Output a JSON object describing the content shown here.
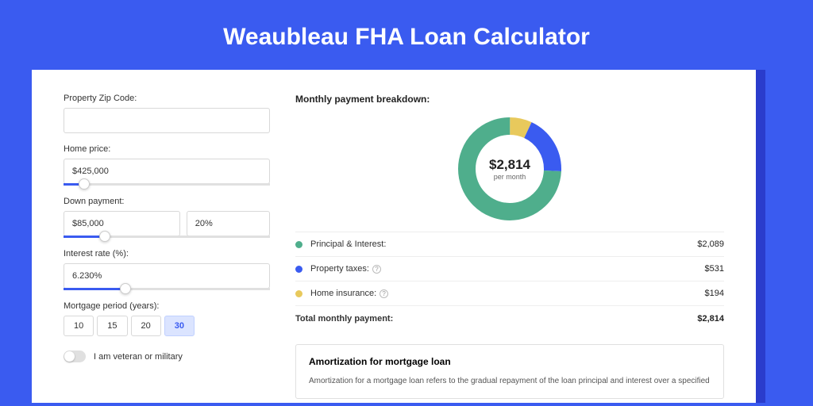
{
  "title": "Weaubleau FHA Loan Calculator",
  "colors": {
    "page_bg": "#3a5bf0",
    "shadow_bg": "#2a3ccc",
    "card_bg": "#ffffff",
    "text": "#333333",
    "border": "#d8d8d8",
    "slider_fill": "#3a5bf0",
    "active_bg": "#dbe4ff"
  },
  "form": {
    "zip": {
      "label": "Property Zip Code:",
      "value": ""
    },
    "price": {
      "label": "Home price:",
      "value": "$425,000",
      "slider_pct": 10
    },
    "down": {
      "label": "Down payment:",
      "value": "$85,000",
      "pct_value": "20%",
      "slider_pct": 20
    },
    "rate": {
      "label": "Interest rate (%):",
      "value": "6.230%",
      "slider_pct": 30
    },
    "period": {
      "label": "Mortgage period (years):",
      "options": [
        "10",
        "15",
        "20",
        "30"
      ],
      "active": "30"
    },
    "veteran": {
      "label": "I am veteran or military",
      "on": false
    }
  },
  "breakdown": {
    "title": "Monthly payment breakdown:",
    "donut": {
      "type": "donut",
      "value": "$2,814",
      "sub": "per month",
      "size": 130,
      "stroke_width": 22,
      "slices": [
        {
          "label": "Principal & Interest",
          "amount": 2089,
          "color": "#4fae8c"
        },
        {
          "label": "Property taxes",
          "amount": 531,
          "color": "#3a5bf0"
        },
        {
          "label": "Home insurance",
          "amount": 194,
          "color": "#e8c95c"
        }
      ]
    },
    "rows": [
      {
        "dot": "#4fae8c",
        "label": "Principal & Interest:",
        "help": false,
        "value": "$2,089"
      },
      {
        "dot": "#3a5bf0",
        "label": "Property taxes:",
        "help": true,
        "value": "$531"
      },
      {
        "dot": "#e8c95c",
        "label": "Home insurance:",
        "help": true,
        "value": "$194"
      }
    ],
    "total": {
      "label": "Total monthly payment:",
      "value": "$2,814"
    }
  },
  "amortization": {
    "title": "Amortization for mortgage loan",
    "text": "Amortization for a mortgage loan refers to the gradual repayment of the loan principal and interest over a specified"
  }
}
